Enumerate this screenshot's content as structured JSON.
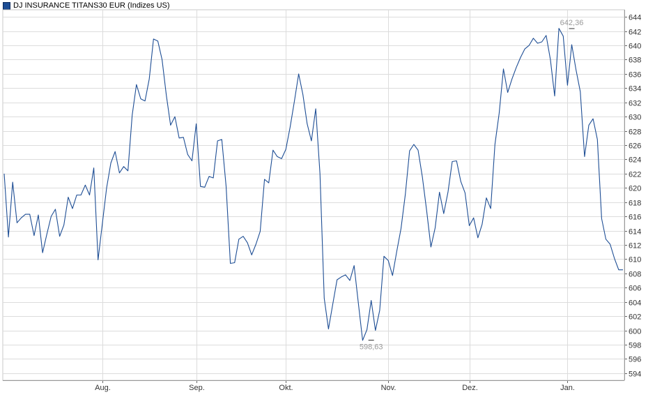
{
  "legend": {
    "label": "DJ INSURANCE TITANS30 EUR (Indizes US)",
    "color": "#1d4d94"
  },
  "chart_data": {
    "type": "line",
    "title": "",
    "xlabel": "",
    "ylabel": "",
    "ylim": [
      593,
      645
    ],
    "yticks": [
      594,
      596,
      598,
      600,
      602,
      604,
      606,
      608,
      610,
      612,
      614,
      616,
      618,
      620,
      622,
      624,
      626,
      628,
      630,
      632,
      634,
      636,
      638,
      640,
      642,
      644
    ],
    "xticks": [
      {
        "label": "Aug.",
        "index": 23
      },
      {
        "label": "Sep.",
        "index": 45
      },
      {
        "label": "Okt.",
        "index": 66
      },
      {
        "label": "Nov.",
        "index": 90
      },
      {
        "label": "Dez.",
        "index": 109
      },
      {
        "label": "Jan.",
        "index": 132
      }
    ],
    "grid": true,
    "legend_position": "top-left",
    "line_color": "#1d4d94",
    "annotations": [
      {
        "label": "642,36",
        "index": 133,
        "value": 642.36,
        "position": "above"
      },
      {
        "label": "598,63",
        "index": 86,
        "value": 598.63,
        "position": "below"
      }
    ],
    "series": [
      {
        "name": "DJ INSURANCE TITANS30 EUR (Indizes US)",
        "values": [
          622.0,
          613.1,
          620.8,
          615.1,
          615.8,
          616.3,
          616.3,
          613.3,
          616.2,
          610.9,
          613.5,
          616.0,
          617.0,
          613.2,
          614.8,
          618.7,
          617.1,
          619.0,
          619.0,
          620.4,
          619.0,
          622.8,
          609.9,
          615.0,
          620.0,
          623.5,
          625.1,
          622.1,
          623.0,
          622.4,
          630.2,
          634.5,
          632.5,
          632.2,
          635.3,
          640.9,
          640.6,
          638.0,
          633.0,
          628.8,
          630.0,
          627.0,
          627.1,
          624.7,
          623.8,
          629.0,
          620.2,
          620.1,
          621.6,
          621.4,
          626.6,
          626.8,
          620.2,
          609.4,
          609.5,
          612.8,
          613.2,
          612.3,
          610.6,
          612.1,
          613.9,
          621.2,
          620.7,
          625.3,
          624.4,
          624.1,
          625.4,
          628.5,
          632.1,
          636.0,
          633.1,
          629.0,
          626.6,
          631.1,
          622.0,
          604.5,
          600.2,
          603.7,
          607.1,
          607.5,
          607.8,
          607.0,
          609.1,
          603.8,
          598.6,
          600.1,
          604.2,
          600.0,
          602.8,
          610.4,
          609.8,
          607.7,
          611.1,
          614.3,
          619.1,
          625.2,
          626.1,
          625.3,
          621.5,
          616.8,
          611.7,
          614.4,
          619.4,
          616.4,
          619.4,
          623.7,
          623.8,
          620.9,
          619.3,
          614.7,
          615.8,
          613.0,
          614.9,
          618.6,
          617.1,
          626.1,
          630.5,
          636.7,
          633.4,
          635.3,
          636.9,
          638.3,
          639.5,
          640.0,
          641.0,
          640.3,
          640.5,
          641.4,
          638.0,
          632.9,
          642.4,
          641.3,
          634.4,
          640.1,
          636.6,
          633.5,
          624.4,
          628.8,
          629.7,
          626.8,
          615.7,
          612.8,
          612.1,
          610.1,
          608.5,
          608.5
        ]
      }
    ]
  }
}
